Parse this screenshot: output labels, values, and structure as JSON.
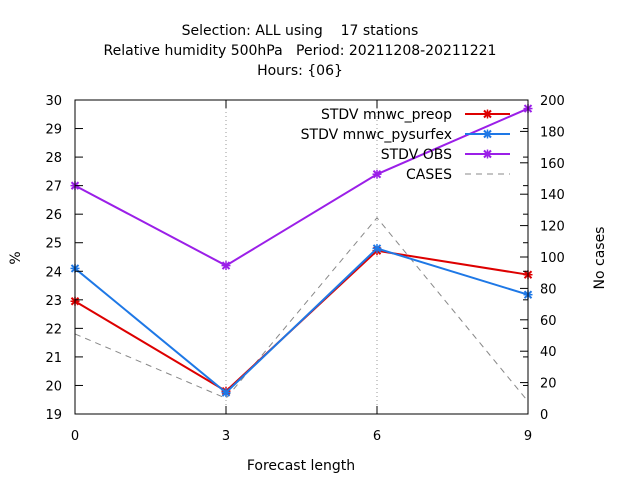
{
  "chart_data": {
    "type": "line",
    "title_lines": [
      "Selection: ALL using    17 stations",
      "Relative humidity 500hPa   Period: 20211208-20211221",
      "Hours: {06}"
    ],
    "xlabel": "Forecast length",
    "ylabel": "%",
    "y2label": "No cases",
    "x": [
      0,
      3,
      6,
      9
    ],
    "xticks": [
      0,
      3,
      6,
      9
    ],
    "xlim": [
      0,
      9
    ],
    "ylim": [
      19,
      30
    ],
    "yticks": [
      19,
      20,
      21,
      22,
      23,
      24,
      25,
      26,
      27,
      28,
      29,
      30
    ],
    "y2lim": [
      0,
      200
    ],
    "y2ticks": [
      0,
      20,
      40,
      60,
      80,
      100,
      120,
      140,
      160,
      180,
      200
    ],
    "grid": "vertical-dotted",
    "legend_position": "top-right",
    "series": [
      {
        "name": "STDV mnwc_preop",
        "axis": "y",
        "color": "#dd0000",
        "marker": "x",
        "values": [
          22.95,
          19.8,
          24.72,
          23.88
        ]
      },
      {
        "name": "STDV mnwc_pysurfex",
        "axis": "y",
        "color": "#1e78e6",
        "marker": "x",
        "values": [
          24.1,
          19.75,
          24.8,
          23.18
        ]
      },
      {
        "name": "STDV OBS",
        "axis": "y",
        "color": "#9b1fe8",
        "marker": "x",
        "values": [
          27.0,
          24.2,
          27.4,
          29.7
        ]
      },
      {
        "name": "CASES",
        "axis": "y2",
        "color": "#888888",
        "marker": "none",
        "dashed": true,
        "values": [
          51,
          10,
          125,
          8
        ]
      }
    ]
  }
}
